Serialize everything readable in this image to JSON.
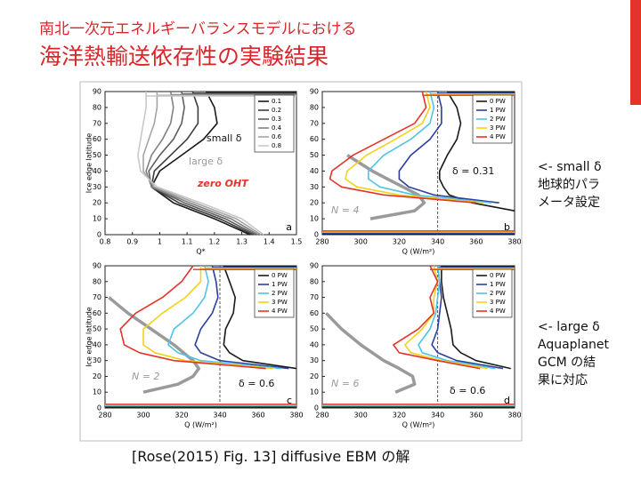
{
  "slide": {
    "title_line1": "南北一次元エネルギーバランスモデルにおける",
    "title_line2": "海洋熱輸送依存性の実験結果",
    "note_small": [
      "<- small δ",
      "地球的パラ",
      "メータ設定"
    ],
    "note_large": [
      "<- large δ",
      "Aquaplanet",
      "GCM の結",
      "果に対応"
    ],
    "caption": "[Rose(2015) Fig. 13] diffusive EBM の解"
  },
  "chart_data": [
    {
      "type": "line",
      "panel_label": "a",
      "xlabel": "Q*",
      "ylabel": "Ice edge latitude",
      "xlim": [
        0.8,
        1.5
      ],
      "xticks": [
        0.8,
        0.9,
        1,
        1.1,
        1.2,
        1.3,
        1.4,
        1.5
      ],
      "ylim": [
        0,
        90
      ],
      "yticks": [
        0,
        10,
        20,
        30,
        40,
        50,
        60,
        70,
        80,
        90
      ],
      "y": [
        0,
        10,
        20,
        30,
        40,
        50,
        60,
        70,
        80,
        90
      ],
      "series": [
        {
          "name": "0.1",
          "color": "#1a1a1a",
          "values": [
            1.33,
            1.2,
            1.05,
            0.97,
            1.0,
            1.08,
            1.16,
            1.21,
            1.2,
            1.17
          ]
        },
        {
          "name": "0.2",
          "color": "#3c3c3c",
          "values": [
            1.34,
            1.22,
            1.07,
            0.97,
            0.98,
            1.04,
            1.1,
            1.14,
            1.14,
            1.12
          ]
        },
        {
          "name": "0.3",
          "color": "#5e5e5e",
          "values": [
            1.35,
            1.24,
            1.09,
            0.97,
            0.96,
            1.0,
            1.05,
            1.08,
            1.09,
            1.08
          ]
        },
        {
          "name": "0.4",
          "color": "#808080",
          "values": [
            1.36,
            1.26,
            1.11,
            0.97,
            0.95,
            0.97,
            1.01,
            1.04,
            1.05,
            1.04
          ]
        },
        {
          "name": "0.6",
          "color": "#a4a4a4",
          "values": [
            1.37,
            1.28,
            1.13,
            0.98,
            0.94,
            0.94,
            0.96,
            0.98,
            0.99,
            0.99
          ]
        },
        {
          "name": "0.8",
          "color": "#c8c8c8",
          "values": [
            1.38,
            1.3,
            1.15,
            0.99,
            0.93,
            0.92,
            0.93,
            0.94,
            0.95,
            0.95
          ]
        }
      ],
      "annotations": [
        {
          "text": "small δ",
          "color": "#111111"
        },
        {
          "text": "large δ",
          "color": "#999999"
        },
        {
          "text": "zero OHT",
          "color": "#e4332a"
        }
      ]
    },
    {
      "type": "line",
      "panel_label": "b",
      "xlabel": "Q (W/m²)",
      "xlim": [
        280,
        380
      ],
      "xticks": [
        280,
        300,
        320,
        340,
        360,
        380
      ],
      "ylim": [
        0,
        90
      ],
      "yticks": [
        0,
        10,
        20,
        30,
        40,
        50,
        60,
        70,
        80,
        90
      ],
      "y": [
        0,
        10,
        15,
        20,
        25,
        30,
        35,
        40,
        50,
        60,
        70,
        80,
        90
      ],
      "vline": 340,
      "series": [
        {
          "name": "0 PW",
          "color": "#1a1a1a",
          "values": [
            null,
            null,
            380,
            358,
            346,
            343,
            341,
            341,
            345,
            350,
            352,
            350,
            345
          ]
        },
        {
          "name": "1 PW",
          "color": "#2b3f9e",
          "values": [
            null,
            null,
            null,
            372,
            338,
            325,
            320,
            320,
            326,
            336,
            342,
            342,
            340
          ]
        },
        {
          "name": "2 PW",
          "color": "#4fc3e8",
          "values": [
            null,
            null,
            null,
            368,
            328,
            310,
            304,
            304,
            312,
            326,
            336,
            338,
            336
          ]
        },
        {
          "name": "3 PW",
          "color": "#f2d21b",
          "values": [
            null,
            null,
            null,
            364,
            320,
            298,
            292,
            293,
            303,
            318,
            332,
            336,
            334
          ]
        },
        {
          "name": "4 PW",
          "color": "#e4332a",
          "values": [
            null,
            null,
            null,
            360,
            312,
            290,
            284,
            285,
            296,
            312,
            328,
            334,
            332
          ]
        }
      ],
      "reference": {
        "color": "#9a9a9a",
        "values": [
          null,
          305,
          328,
          333,
          330,
          322,
          314,
          306,
          293,
          null,
          null,
          null,
          null
        ]
      },
      "annotations": [
        {
          "text": "δ = 0.31",
          "color": "#111111"
        },
        {
          "text": "N = 4",
          "color": "#9a9a9a"
        }
      ]
    },
    {
      "type": "line",
      "panel_label": "c",
      "xlabel": "Q (W/m²)",
      "ylabel": "Ice edge latitude",
      "xlim": [
        280,
        380
      ],
      "xticks": [
        280,
        300,
        320,
        340,
        360,
        380
      ],
      "ylim": [
        0,
        90
      ],
      "yticks": [
        0,
        10,
        20,
        30,
        40,
        50,
        60,
        70,
        80,
        90
      ],
      "y": [
        0,
        10,
        15,
        20,
        25,
        30,
        35,
        40,
        50,
        60,
        70,
        80,
        90
      ],
      "vline": 340,
      "series": [
        {
          "name": "0 PW",
          "color": "#1a1a1a",
          "values": [
            null,
            null,
            null,
            null,
            380,
            352,
            345,
            342,
            343,
            347,
            348,
            345,
            342
          ]
        },
        {
          "name": "1 PW",
          "color": "#2b3f9e",
          "values": [
            null,
            null,
            null,
            null,
            376,
            340,
            330,
            327,
            330,
            336,
            339,
            338,
            336
          ]
        },
        {
          "name": "2 PW",
          "color": "#4fc3e8",
          "values": [
            null,
            null,
            null,
            null,
            372,
            330,
            318,
            313,
            316,
            326,
            332,
            334,
            332
          ]
        },
        {
          "name": "3 PW",
          "color": "#f2d21b",
          "values": [
            null,
            null,
            null,
            null,
            368,
            322,
            306,
            300,
            300,
            310,
            322,
            330,
            330
          ]
        },
        {
          "name": "4 PW",
          "color": "#e4332a",
          "values": [
            null,
            null,
            null,
            null,
            364,
            316,
            298,
            290,
            288,
            296,
            310,
            320,
            326
          ]
        }
      ],
      "reference": {
        "color": "#9a9a9a",
        "values": [
          null,
          300,
          318,
          326,
          329,
          326,
          321,
          316,
          304,
          292,
          282,
          null,
          null
        ]
      },
      "annotations": [
        {
          "text": "N = 2",
          "color": "#9a9a9a"
        },
        {
          "text": "δ = 0.6",
          "color": "#111111"
        }
      ]
    },
    {
      "type": "line",
      "panel_label": "d",
      "xlabel": "Q (W/m²)",
      "xlim": [
        280,
        380
      ],
      "xticks": [
        280,
        300,
        320,
        340,
        360,
        380
      ],
      "ylim": [
        0,
        90
      ],
      "yticks": [
        0,
        10,
        20,
        30,
        40,
        50,
        60,
        70,
        80,
        90
      ],
      "y": [
        0,
        10,
        15,
        20,
        25,
        30,
        35,
        40,
        50,
        60,
        70,
        80,
        90
      ],
      "vline": 340,
      "series": [
        {
          "name": "0 PW",
          "color": "#1a1a1a",
          "values": [
            null,
            null,
            null,
            null,
            378,
            360,
            352,
            348,
            347,
            345,
            343,
            342,
            342
          ]
        },
        {
          "name": "1 PW",
          "color": "#2b3f9e",
          "values": [
            null,
            null,
            null,
            null,
            374,
            350,
            340,
            337,
            340,
            341,
            342,
            341,
            340
          ]
        },
        {
          "name": "2 PW",
          "color": "#4fc3e8",
          "values": [
            null,
            null,
            null,
            null,
            370,
            345,
            332,
            330,
            336,
            339,
            340,
            341,
            340
          ]
        },
        {
          "name": "3 PW",
          "color": "#f2d21b",
          "values": [
            null,
            null,
            null,
            null,
            366,
            342,
            326,
            323,
            332,
            338,
            338,
            340,
            338
          ]
        },
        {
          "name": "4 PW",
          "color": "#e4332a",
          "values": [
            null,
            null,
            null,
            null,
            362,
            340,
            320,
            317,
            330,
            338,
            336,
            340,
            336
          ]
        }
      ],
      "reference": {
        "color": "#9a9a9a",
        "values": [
          null,
          318,
          328,
          327,
          320,
          312,
          306,
          300,
          290,
          282,
          null,
          null,
          null
        ]
      },
      "annotations": [
        {
          "text": "N = 6",
          "color": "#9a9a9a"
        },
        {
          "text": "δ = 0.6",
          "color": "#111111"
        }
      ]
    }
  ]
}
